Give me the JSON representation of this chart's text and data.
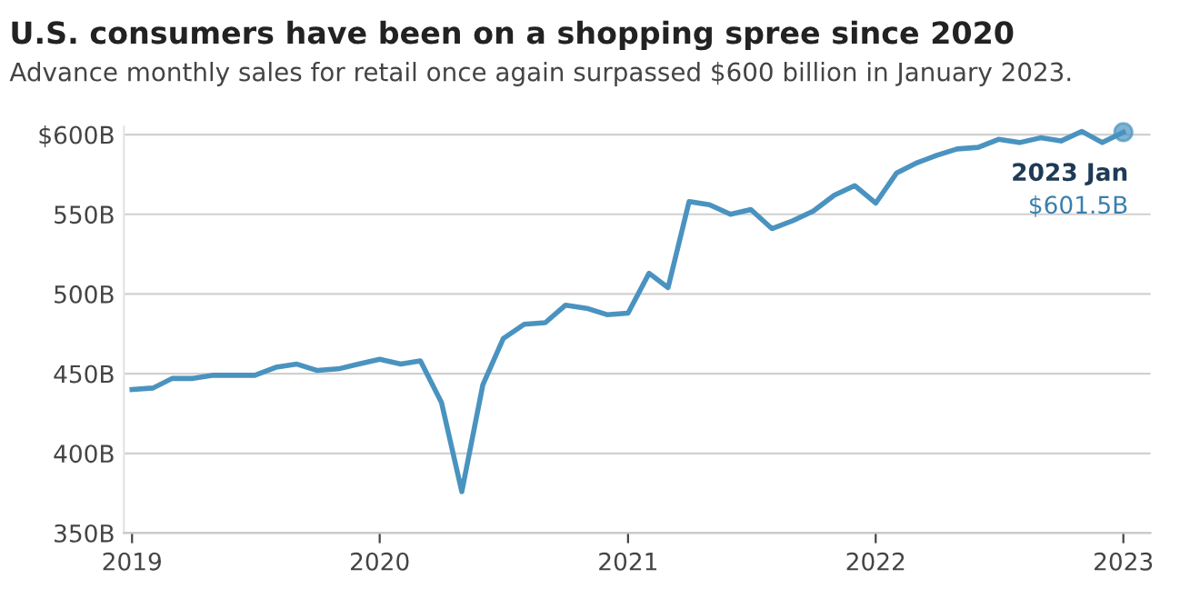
{
  "chart_data": {
    "type": "line",
    "title": "U.S. consumers have been on a shopping spree since 2020",
    "subtitle": "Advance monthly sales for retail once again surpassed $600 billion in January 2023.",
    "x": [
      "2019-01",
      "2019-02",
      "2019-03",
      "2019-04",
      "2019-05",
      "2019-06",
      "2019-07",
      "2019-08",
      "2019-09",
      "2019-10",
      "2019-11",
      "2019-12",
      "2020-01",
      "2020-02",
      "2020-03",
      "2020-04",
      "2020-05",
      "2020-06",
      "2020-07",
      "2020-08",
      "2020-09",
      "2020-10",
      "2020-11",
      "2020-12",
      "2021-01",
      "2021-02",
      "2021-03",
      "2021-04",
      "2021-05",
      "2021-06",
      "2021-07",
      "2021-08",
      "2021-09",
      "2021-10",
      "2021-11",
      "2021-12",
      "2022-01",
      "2022-02",
      "2022-03",
      "2022-04",
      "2022-05",
      "2022-06",
      "2022-07",
      "2022-08",
      "2022-09",
      "2022-10",
      "2022-11",
      "2022-12",
      "2023-01"
    ],
    "series": [
      {
        "color": "#4a93c0",
        "values": [
          440,
          441,
          447,
          447,
          449,
          449,
          449,
          454,
          456,
          452,
          453,
          456,
          459,
          456,
          458,
          432,
          376,
          443,
          472,
          481,
          482,
          493,
          491,
          487,
          488,
          513,
          504,
          558,
          556,
          550,
          553,
          541,
          546,
          552,
          562,
          568,
          557,
          576,
          582,
          587,
          591,
          592,
          597,
          595,
          598,
          596,
          602,
          595,
          601.5
        ]
      }
    ],
    "annotations": [
      {
        "text": "2023 Jan",
        "x": "2023-01",
        "y": 601.5
      },
      {
        "text": "$601.5B",
        "x": "2023-01",
        "y": 601.5
      }
    ],
    "xlim": [
      "2018-12-20",
      "2023-02-10"
    ],
    "xticks": [
      "2019",
      "2020",
      "2021",
      "2022",
      "2023"
    ],
    "ylim": [
      350,
      605
    ],
    "yticks": [
      {
        "value": 350,
        "label": "350B"
      },
      {
        "value": 400,
        "label": "400B"
      },
      {
        "value": 450,
        "label": "450B"
      },
      {
        "value": 500,
        "label": "500B"
      },
      {
        "value": 550,
        "label": "550B"
      },
      {
        "value": 600,
        "label": "$600B"
      }
    ],
    "grid": "y",
    "legend": false,
    "marker": "none",
    "line_style": "solid"
  }
}
